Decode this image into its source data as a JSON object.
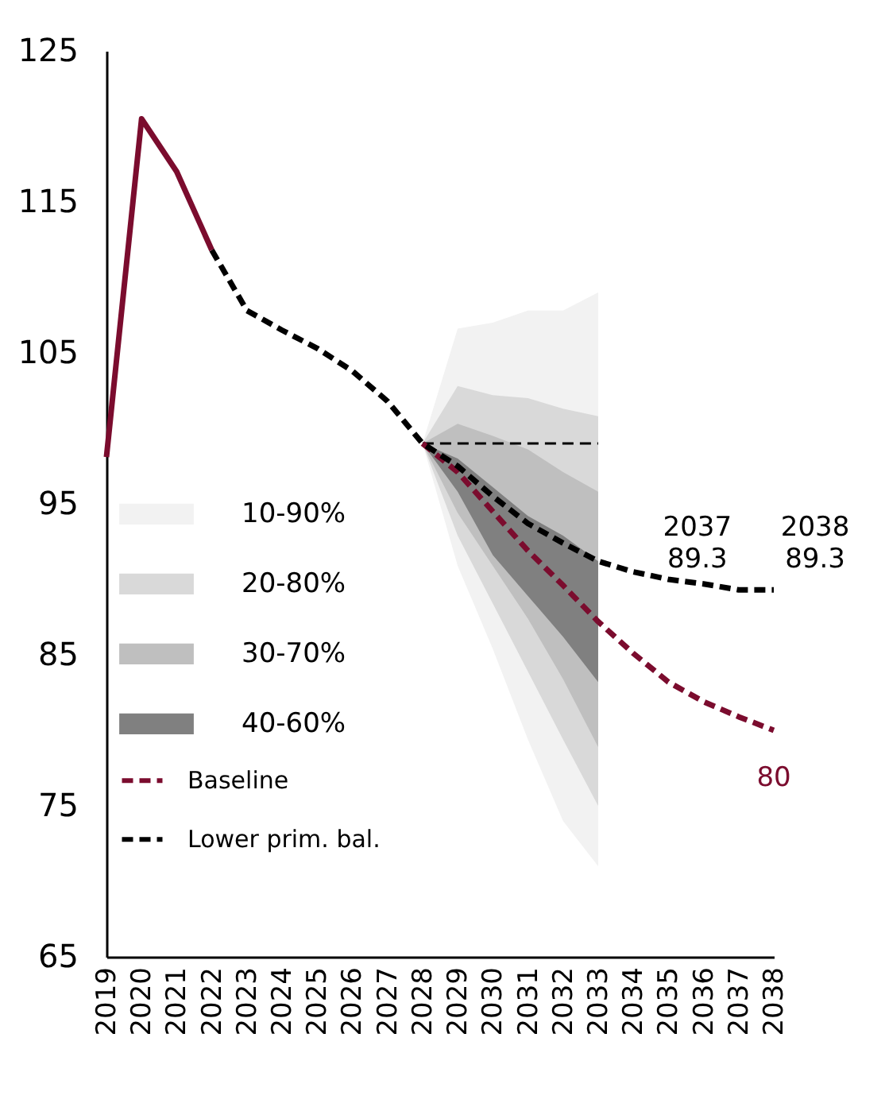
{
  "chart_data": {
    "type": "line",
    "categories": [
      "2019",
      "2020",
      "2021",
      "2022",
      "2023",
      "2024",
      "2025",
      "2026",
      "2027",
      "2028",
      "2029",
      "2030",
      "2031",
      "2032",
      "2033",
      "2034",
      "2035",
      "2036",
      "2037",
      "2038"
    ],
    "ylim": [
      65,
      125
    ],
    "yticks": [
      65,
      75,
      85,
      95,
      105,
      115,
      125
    ],
    "legend": "left",
    "series": [
      {
        "name": "10-90%",
        "type": "area",
        "color": "#f2f2f2",
        "values": [
          null,
          null,
          null,
          null,
          null,
          null,
          null,
          null,
          null,
          null,
          null,
          null,
          null,
          null,
          null,
          null,
          null,
          null,
          null,
          null
        ],
        "lower": [
          null,
          null,
          null,
          null,
          null,
          null,
          null,
          null,
          null,
          99.0,
          90.9,
          85.4,
          79.4,
          74.0,
          71.0,
          null,
          null,
          null,
          null,
          null
        ],
        "upper": [
          null,
          null,
          null,
          null,
          null,
          null,
          null,
          null,
          null,
          99.0,
          106.6,
          107.0,
          107.8,
          107.8,
          109.0,
          null,
          null,
          null,
          null,
          null
        ]
      },
      {
        "name": "20-80%",
        "type": "area",
        "color": "#d9d9d9",
        "values": [
          null,
          null,
          null,
          null,
          null,
          null,
          null,
          null,
          null,
          null,
          null,
          null,
          null,
          null,
          null,
          null,
          null,
          null,
          null,
          null
        ],
        "lower": [
          null,
          null,
          null,
          null,
          null,
          null,
          null,
          null,
          null,
          99.0,
          92.9,
          88.4,
          83.9,
          79.4,
          75.0,
          null,
          null,
          null,
          null,
          null
        ],
        "upper": [
          null,
          null,
          null,
          null,
          null,
          null,
          null,
          null,
          null,
          99.0,
          102.8,
          102.2,
          102.0,
          101.3,
          100.8,
          null,
          null,
          null,
          null,
          null
        ]
      },
      {
        "name": "30-70%",
        "type": "area",
        "color": "#bfbfbf",
        "values": [
          null,
          null,
          null,
          null,
          null,
          null,
          null,
          null,
          null,
          null,
          null,
          null,
          null,
          null,
          null,
          null,
          null,
          null,
          null,
          null
        ],
        "lower": [
          null,
          null,
          null,
          null,
          null,
          null,
          null,
          null,
          null,
          99.0,
          94.4,
          90.9,
          87.4,
          83.4,
          78.9,
          null,
          null,
          null,
          null,
          null
        ],
        "upper": [
          null,
          null,
          null,
          null,
          null,
          null,
          null,
          null,
          null,
          99.0,
          100.3,
          99.5,
          98.6,
          97.1,
          95.8,
          null,
          null,
          null,
          null,
          null
        ]
      },
      {
        "name": "40-60%",
        "type": "area",
        "color": "#808080",
        "values": [
          null,
          null,
          null,
          null,
          null,
          null,
          null,
          null,
          null,
          null,
          null,
          null,
          null,
          null,
          null,
          null,
          null,
          null,
          null,
          null
        ],
        "lower": [
          null,
          null,
          null,
          null,
          null,
          null,
          null,
          null,
          null,
          99.0,
          95.8,
          91.6,
          88.9,
          86.2,
          83.2,
          null,
          null,
          null,
          null,
          null
        ],
        "upper": [
          null,
          null,
          null,
          null,
          null,
          null,
          null,
          null,
          null,
          99.0,
          98.0,
          96.1,
          94.2,
          92.9,
          91.2,
          null,
          null,
          null,
          null,
          null
        ]
      },
      {
        "type": "line",
        "color": "#000000",
        "line_style": "dashed",
        "values": [
          null,
          null,
          null,
          null,
          null,
          null,
          null,
          null,
          null,
          99.0,
          99.0,
          99.0,
          99.0,
          99.0,
          99.0,
          null,
          null,
          null,
          null,
          null
        ]
      },
      {
        "type": "line",
        "color": "#7b0c2e",
        "line_style": "solid",
        "values": [
          98.1,
          120.5,
          117.0,
          111.8,
          null,
          null,
          null,
          null,
          null,
          null,
          null,
          null,
          null,
          null,
          null,
          null,
          null,
          null,
          null,
          null
        ]
      },
      {
        "name": "Baseline",
        "type": "line",
        "color": "#7b0c2e",
        "line_style": "dashed",
        "values": [
          null,
          null,
          null,
          null,
          null,
          null,
          null,
          null,
          null,
          99.0,
          97.1,
          94.5,
          91.9,
          89.6,
          87.2,
          85.1,
          83.2,
          81.9,
          80.9,
          80.0
        ]
      },
      {
        "name": "Lower prim. bal.",
        "type": "line",
        "color": "#000000",
        "line_style": "dashed",
        "values": [
          null,
          null,
          null,
          111.8,
          107.8,
          106.5,
          105.3,
          103.8,
          101.8,
          99.0,
          97.5,
          95.5,
          93.7,
          92.4,
          91.2,
          90.5,
          90.0,
          89.7,
          89.3,
          89.3
        ]
      }
    ],
    "annotations": [
      {
        "text": "2037 89.3",
        "x": "2037",
        "y": 89.3
      },
      {
        "text": "2038 89.3",
        "x": "2038",
        "y": 89.3
      },
      {
        "text": "80",
        "x": "2038",
        "y": 80.0
      }
    ]
  }
}
